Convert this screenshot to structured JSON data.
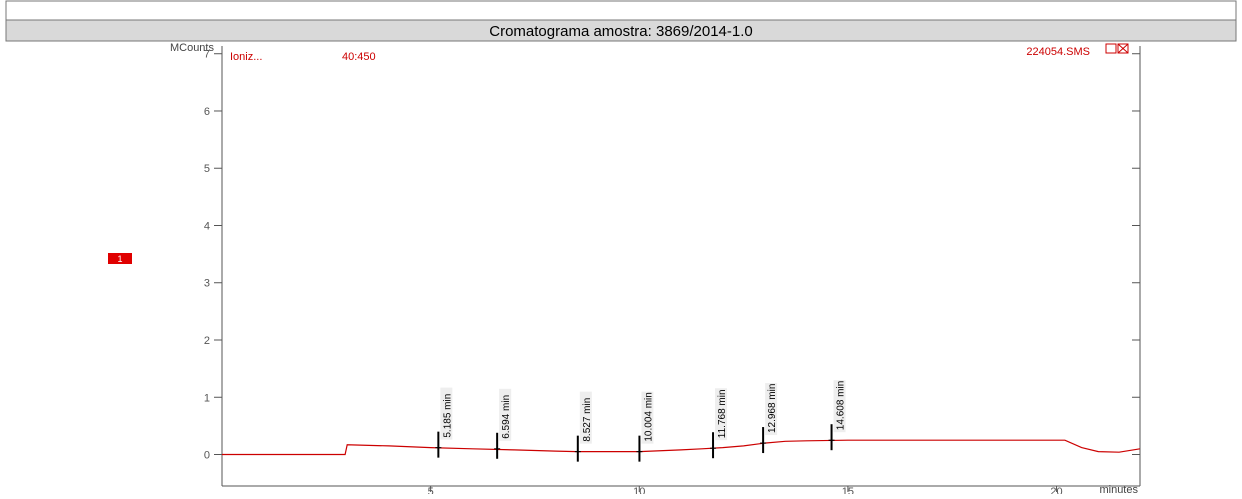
{
  "chart_data": {
    "type": "line",
    "title": "Cromatograma amostra: 3869/2014-1.0",
    "ylabel": "MCounts",
    "xlabel": "minutes",
    "ion_label": "Ioniz...",
    "mass_range": "40:450",
    "file_name": "224054.SMS",
    "trace_marker": "1",
    "xlim": [
      0,
      22
    ],
    "ylim": [
      -0.55,
      7.1
    ],
    "xticks": [
      5,
      10,
      15,
      20
    ],
    "yticks": [
      0,
      1,
      2,
      3,
      4,
      5,
      6,
      7
    ],
    "color": "#cc0000",
    "x": [
      0,
      2.95,
      3.0,
      4,
      5,
      6,
      7,
      8,
      8.5,
      9,
      10,
      11,
      11.5,
      12,
      12.5,
      13,
      13.5,
      14,
      15,
      17,
      19,
      20.2,
      20.6,
      21,
      21.5,
      22
    ],
    "values": [
      0,
      0,
      0.17,
      0.15,
      0.12,
      0.1,
      0.08,
      0.06,
      0.05,
      0.05,
      0.05,
      0.08,
      0.1,
      0.12,
      0.15,
      0.2,
      0.23,
      0.24,
      0.25,
      0.25,
      0.25,
      0.25,
      0.12,
      0.05,
      0.04,
      0.1
    ],
    "peaks": [
      {
        "x": 5.185,
        "y": 0.12,
        "label": "5.185 min"
      },
      {
        "x": 6.594,
        "y": 0.1,
        "label": "6.594 min"
      },
      {
        "x": 8.527,
        "y": 0.05,
        "label": "8.527 min"
      },
      {
        "x": 10.004,
        "y": 0.05,
        "label": "10.004 min"
      },
      {
        "x": 11.768,
        "y": 0.11,
        "label": "11.768 min"
      },
      {
        "x": 12.968,
        "y": 0.2,
        "label": "12.968 min"
      },
      {
        "x": 14.608,
        "y": 0.25,
        "label": "14.608 min"
      }
    ]
  }
}
